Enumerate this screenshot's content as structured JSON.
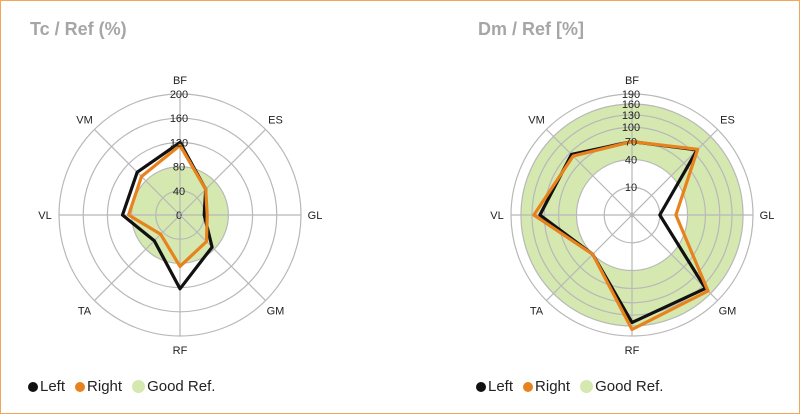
{
  "colors": {
    "left": "#111111",
    "right": "#e8821c",
    "good_ref": "#d5e8b0",
    "grid": "#b8b8b8",
    "title": "#a6a6a6",
    "border": "#f2a65a"
  },
  "chart_data": [
    {
      "type": "radar",
      "title": "Tc / Ref (%)",
      "axes": [
        "BF",
        "ES",
        "GL",
        "GM",
        "RF",
        "TA",
        "VL",
        "VM"
      ],
      "radial_ticks": [
        0,
        40,
        80,
        120,
        160,
        200
      ],
      "rmax": 200,
      "scale": "linear",
      "series": [
        {
          "name": "Left",
          "values": [
            120,
            60,
            40,
            75,
            122,
            60,
            95,
            100
          ]
        },
        {
          "name": "Right",
          "values": [
            115,
            60,
            45,
            62,
            85,
            45,
            85,
            90
          ]
        }
      ],
      "good_ref": {
        "name": "Good Ref.",
        "inner": 0,
        "outer": 80
      },
      "legend": [
        "Left",
        "Right",
        "Good Ref."
      ]
    },
    {
      "type": "radar",
      "title": "Dm / Ref [%]",
      "axes": [
        "BF",
        "ES",
        "GL",
        "GM",
        "RF",
        "TA",
        "VL",
        "VM"
      ],
      "radial_ticks": [
        10,
        40,
        70,
        100,
        130,
        160,
        190
      ],
      "rmax": 190,
      "scale": "sqrt",
      "series": [
        {
          "name": "Left",
          "values": [
            70,
            110,
            10,
            140,
            150,
            40,
            110,
            95
          ]
        },
        {
          "name": "Right",
          "values": [
            70,
            112,
            25,
            150,
            170,
            40,
            125,
            90
          ]
        }
      ],
      "good_ref": {
        "name": "Good Ref.",
        "inner": 40,
        "outer": 160
      },
      "legend": [
        "Left",
        "Right",
        "Good Ref."
      ]
    }
  ]
}
